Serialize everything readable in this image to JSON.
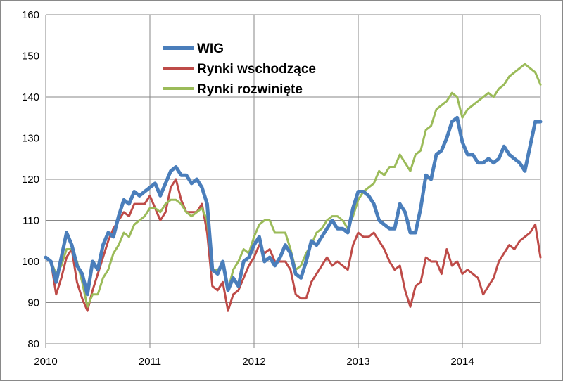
{
  "chart_data": {
    "type": "line",
    "title": "",
    "xlabel": "",
    "ylabel": "",
    "xlim": [
      2010,
      2014.75
    ],
    "ylim": [
      80,
      160
    ],
    "y_ticks": [
      "80",
      "90",
      "100",
      "110",
      "120",
      "130",
      "140",
      "150",
      "160"
    ],
    "x_ticks": [
      "2010",
      "2011",
      "2012",
      "2013",
      "2014"
    ],
    "grid": true,
    "legend_position": "top-center",
    "x": [
      2010.0,
      2010.05,
      2010.1,
      2010.15,
      2010.2,
      2010.25,
      2010.3,
      2010.35,
      2010.4,
      2010.45,
      2010.5,
      2010.55,
      2010.6,
      2010.65,
      2010.7,
      2010.75,
      2010.8,
      2010.85,
      2010.9,
      2010.95,
      2011.0,
      2011.05,
      2011.1,
      2011.15,
      2011.2,
      2011.25,
      2011.3,
      2011.35,
      2011.4,
      2011.45,
      2011.5,
      2011.55,
      2011.6,
      2011.65,
      2011.7,
      2011.75,
      2011.8,
      2011.85,
      2011.9,
      2011.95,
      2012.0,
      2012.05,
      2012.1,
      2012.15,
      2012.2,
      2012.25,
      2012.3,
      2012.35,
      2012.4,
      2012.45,
      2012.5,
      2012.55,
      2012.6,
      2012.65,
      2012.7,
      2012.75,
      2012.8,
      2012.85,
      2012.9,
      2012.95,
      2013.0,
      2013.05,
      2013.1,
      2013.15,
      2013.2,
      2013.25,
      2013.3,
      2013.35,
      2013.4,
      2013.45,
      2013.5,
      2013.55,
      2013.6,
      2013.65,
      2013.7,
      2013.75,
      2013.8,
      2013.85,
      2013.9,
      2013.95,
      2014.0,
      2014.05,
      2014.1,
      2014.15,
      2014.2,
      2014.25,
      2014.3,
      2014.35,
      2014.4,
      2014.45,
      2014.5,
      2014.55,
      2014.6,
      2014.65,
      2014.7,
      2014.75
    ],
    "series": [
      {
        "name": "WIG",
        "color": "#4a7ebb",
        "width": 5,
        "values": [
          101,
          100,
          95,
          101,
          107,
          104,
          99,
          97,
          92,
          100,
          98,
          104,
          107,
          106,
          111,
          115,
          114,
          117,
          116,
          117,
          118,
          119,
          116,
          119,
          122,
          123,
          121,
          121,
          119,
          120,
          118,
          114,
          98,
          97,
          100,
          93,
          96,
          94,
          100,
          101,
          104,
          106,
          100,
          101,
          99,
          101,
          104,
          102,
          97,
          96,
          100,
          105,
          104,
          106,
          108,
          110,
          108,
          108,
          107,
          113,
          117,
          117,
          116,
          114,
          110,
          109,
          108,
          108,
          114,
          112,
          107,
          107,
          113,
          121,
          120,
          126,
          127,
          130,
          134,
          135,
          129,
          126,
          126,
          124,
          124,
          125,
          124,
          125,
          128,
          126,
          125,
          124,
          122,
          128,
          134,
          134
        ]
      },
      {
        "name": "Rynki wschodzące",
        "color": "#be4b48",
        "width": 3,
        "values": [
          101,
          100,
          92,
          96,
          101,
          103,
          95,
          91,
          88,
          93,
          97,
          101,
          105,
          108,
          110,
          112,
          111,
          114,
          114,
          114,
          116,
          113,
          110,
          112,
          118,
          120,
          115,
          112,
          112,
          112,
          114,
          107,
          94,
          93,
          95,
          88,
          92,
          93,
          96,
          99,
          101,
          104,
          102,
          103,
          100,
          100,
          100,
          98,
          92,
          91,
          91,
          95,
          97,
          99,
          101,
          99,
          100,
          99,
          98,
          104,
          107,
          106,
          106,
          107,
          105,
          103,
          100,
          98,
          99,
          93,
          89,
          94,
          95,
          101,
          100,
          100,
          97,
          103,
          99,
          100,
          97,
          98,
          97,
          96,
          92,
          94,
          96,
          100,
          102,
          104,
          103,
          105,
          106,
          107,
          109,
          101
        ]
      },
      {
        "name": "Rynki rozwinięte",
        "color": "#9bbb59",
        "width": 3,
        "values": [
          101,
          100,
          97,
          99,
          103,
          103,
          100,
          95,
          89,
          92,
          92,
          96,
          98,
          102,
          104,
          107,
          106,
          109,
          110,
          111,
          113,
          113,
          112,
          114,
          115,
          115,
          114,
          112,
          111,
          112,
          113,
          110,
          98,
          98,
          99,
          93,
          98,
          100,
          103,
          102,
          106,
          109,
          110,
          110,
          107,
          107,
          107,
          103,
          98,
          99,
          102,
          104,
          107,
          108,
          110,
          111,
          111,
          110,
          108,
          111,
          115,
          117,
          118,
          119,
          122,
          121,
          123,
          123,
          126,
          124,
          122,
          126,
          127,
          132,
          133,
          137,
          138,
          139,
          141,
          140,
          135,
          137,
          138,
          139,
          140,
          141,
          140,
          142,
          143,
          145,
          146,
          147,
          148,
          147,
          146,
          143
        ]
      }
    ]
  }
}
